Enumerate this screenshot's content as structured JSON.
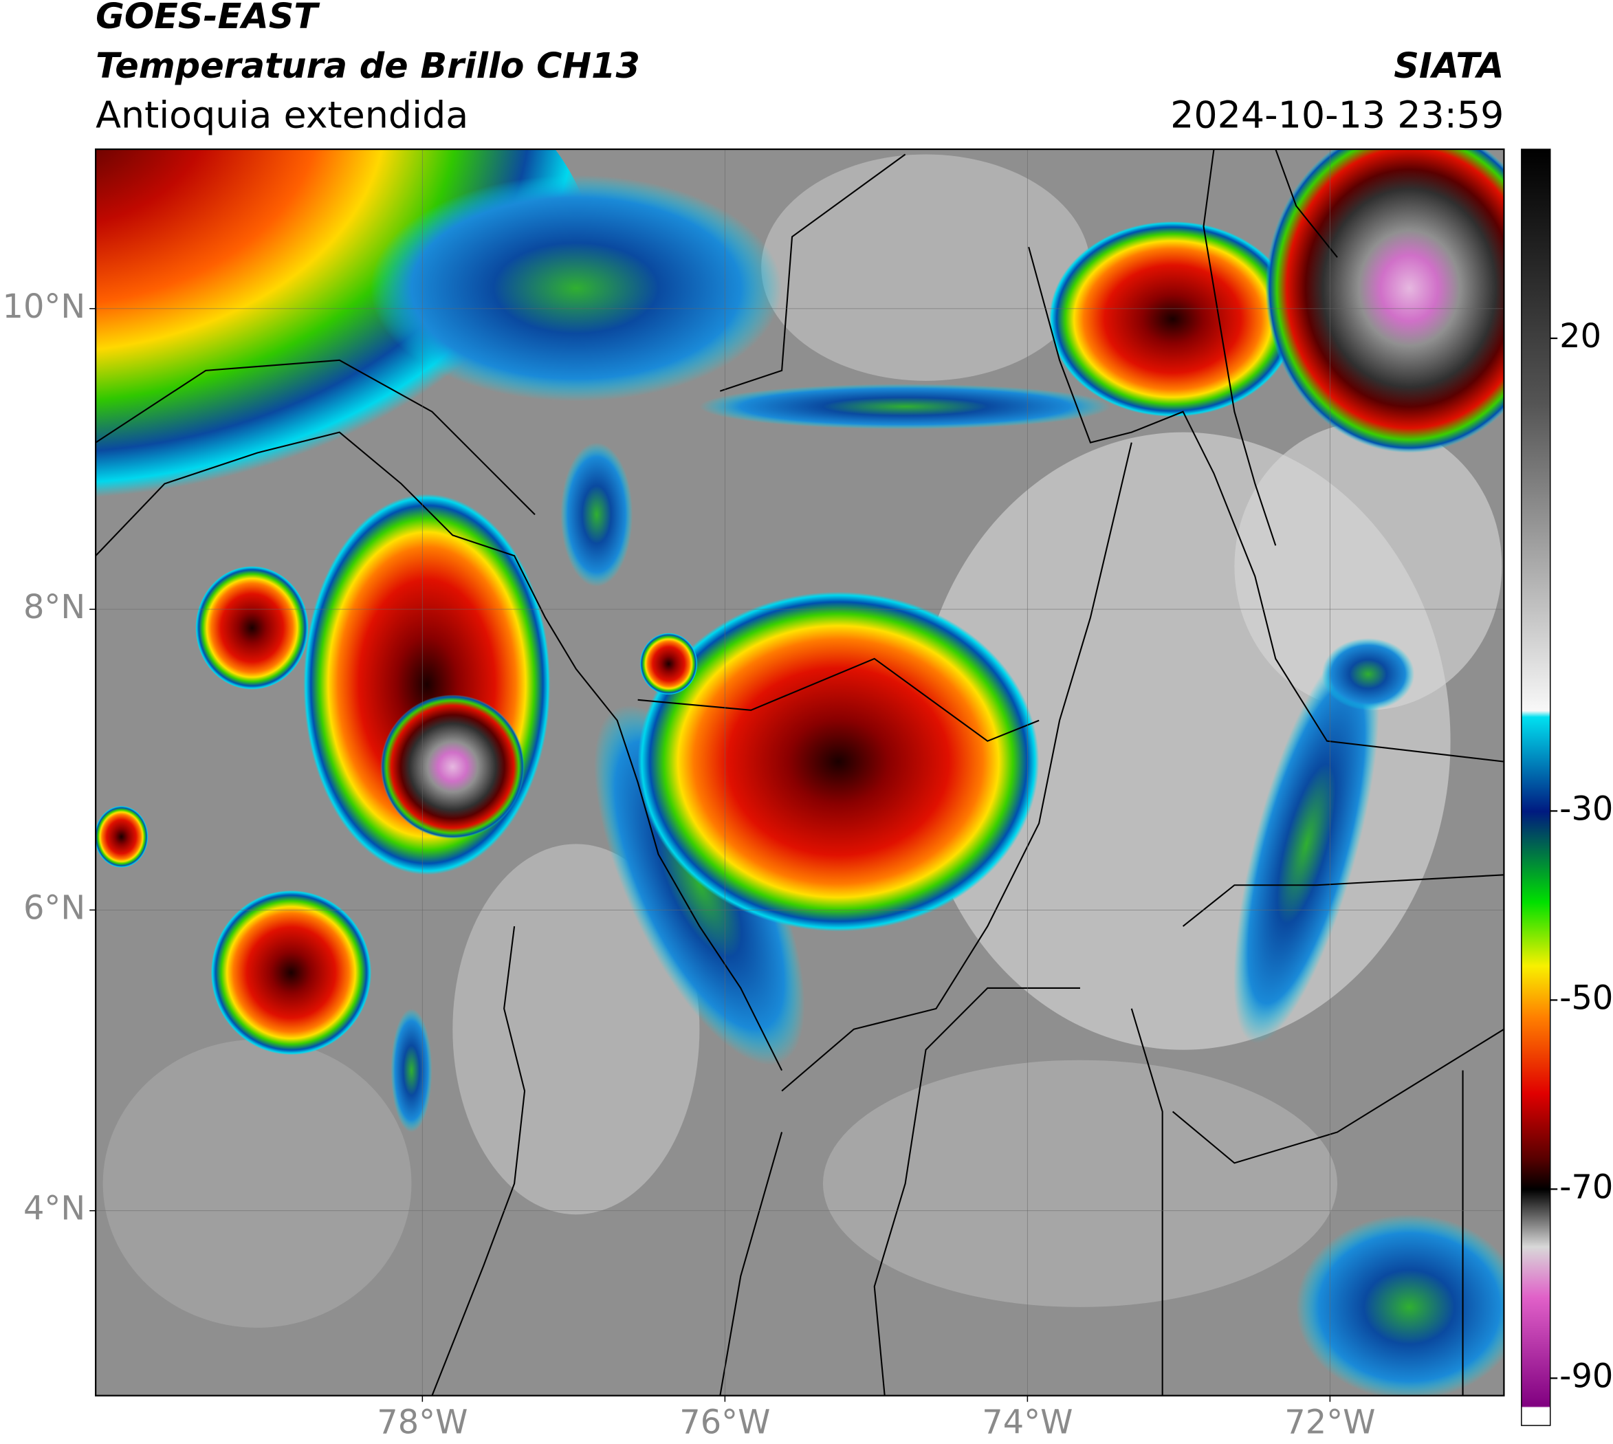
{
  "header": {
    "title_line1": "GOES-EAST",
    "title_line2": "Temperatura de Brillo CH13",
    "subtitle": "Antioquia extendida",
    "agency": "SIATA",
    "timestamp": "2024-10-13 23:59"
  },
  "map": {
    "lat_range": [
      2.77,
      11.06
    ],
    "lon_range": [
      -80.16,
      -70.85
    ],
    "lat_ticks": [
      {
        "value": 10,
        "label": "10°N"
      },
      {
        "value": 8,
        "label": "8°N"
      },
      {
        "value": 6,
        "label": "6°N"
      },
      {
        "value": 4,
        "label": "4°N"
      }
    ],
    "lon_ticks": [
      {
        "value": -78,
        "label": "78°W"
      },
      {
        "value": -76,
        "label": "76°W"
      },
      {
        "value": -74,
        "label": "74°W"
      },
      {
        "value": -72,
        "label": "72°W"
      }
    ],
    "grid": true
  },
  "colorbar": {
    "range": [
      -95,
      40
    ],
    "ticks": [
      20,
      -30,
      -50,
      -70,
      -90
    ]
  }
}
